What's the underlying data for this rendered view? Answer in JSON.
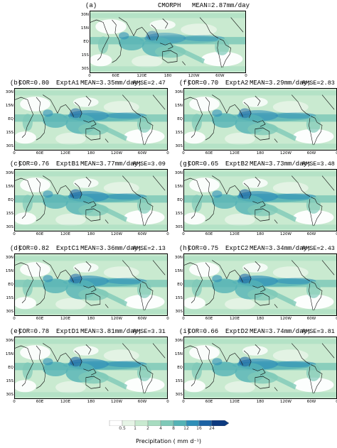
{
  "panels": [
    {
      "id": "a",
      "label": "(a)",
      "cor": "",
      "name": "CMORPH",
      "mean": "MEAN=2.87mm/day",
      "rmse": ""
    },
    {
      "id": "b",
      "label": "(b)",
      "cor": "COR=0.80",
      "name": "ExptA1",
      "mean": "MEAN=3.35mm/day;",
      "rmse": "RMSE=2.47"
    },
    {
      "id": "f",
      "label": "(f)",
      "cor": "COR=0.70",
      "name": "ExptA2",
      "mean": "MEAN=3.29mm/day;",
      "rmse": "RMSE=2.83"
    },
    {
      "id": "c",
      "label": "(c)",
      "cor": "COR=0.76",
      "name": "ExptB1",
      "mean": "MEAN=3.77mm/day;",
      "rmse": "RMSE=3.09"
    },
    {
      "id": "g",
      "label": "(g)",
      "cor": "COR=0.65",
      "name": "ExptB2",
      "mean": "MEAN=3.73mm/day;",
      "rmse": "RMSE=3.48"
    },
    {
      "id": "d",
      "label": "(d)",
      "cor": "COR=0.82",
      "name": "ExptC1",
      "mean": "MEAN=3.36mm/day;",
      "rmse": "RMSE=2.13"
    },
    {
      "id": "h",
      "label": "(h)",
      "cor": "COR=0.75",
      "name": "ExptC2",
      "mean": "MEAN=3.34mm/day;",
      "rmse": "RMSE=2.43"
    },
    {
      "id": "e",
      "label": "(e)",
      "cor": "COR=0.78",
      "name": "ExptD1",
      "mean": "MEAN=3.81mm/day;",
      "rmse": "RMSE=3.31"
    },
    {
      "id": "i",
      "label": "(i)",
      "cor": "COR=0.66",
      "name": "ExptD2",
      "mean": "MEAN=3.74mm/day;",
      "rmse": "RMSE=3.81"
    }
  ],
  "lat_labels": [
    "30N",
    "15N",
    "EQ",
    "15S",
    "30S"
  ],
  "lon_labels": [
    "0",
    "60E",
    "120E",
    "180",
    "120W",
    "60W",
    "0"
  ],
  "colorbar": {
    "levels": [
      "0.5",
      "1",
      "2",
      "4",
      "8",
      "12",
      "16",
      "24"
    ],
    "colors": [
      "#ffffff",
      "#e6f4e6",
      "#c9ead0",
      "#a7dcc0",
      "#7fc9b8",
      "#55b3b5",
      "#2f8fb8",
      "#1b62a4",
      "#0d3a80"
    ],
    "title": "Precipitation ( mm d⁻¹)"
  }
}
